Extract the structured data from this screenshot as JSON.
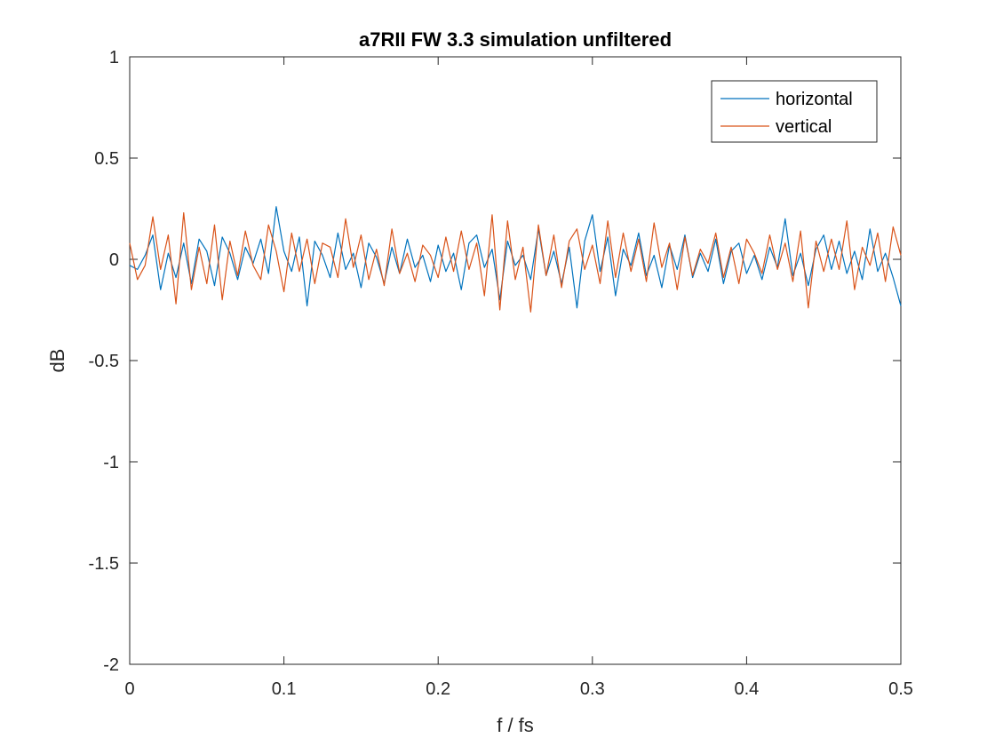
{
  "chart_data": {
    "type": "line",
    "title": "a7RII FW 3.3 simulation unfiltered",
    "xlabel": "f / fs",
    "ylabel": "dB",
    "xlim": [
      0,
      0.5
    ],
    "ylim": [
      -2,
      1
    ],
    "xticks": [
      0,
      0.1,
      0.2,
      0.3,
      0.4,
      0.5
    ],
    "xtick_labels": [
      "0",
      "0.1",
      "0.2",
      "0.3",
      "0.4",
      "0.5"
    ],
    "yticks": [
      -2,
      -1.5,
      -1,
      -0.5,
      0,
      0.5,
      1
    ],
    "ytick_labels": [
      "-2",
      "-1.5",
      "-1",
      "-0.5",
      "0",
      "0.5",
      "1"
    ],
    "grid": false,
    "legend_position": "top-right",
    "x": [
      0,
      0.005,
      0.01,
      0.015,
      0.02,
      0.025,
      0.03,
      0.035,
      0.04,
      0.045,
      0.05,
      0.055,
      0.06,
      0.065,
      0.07,
      0.075,
      0.08,
      0.085,
      0.09,
      0.095,
      0.1,
      0.105,
      0.11,
      0.115,
      0.12,
      0.125,
      0.13,
      0.135,
      0.14,
      0.145,
      0.15,
      0.155,
      0.16,
      0.165,
      0.17,
      0.175,
      0.18,
      0.185,
      0.19,
      0.195,
      0.2,
      0.205,
      0.21,
      0.215,
      0.22,
      0.225,
      0.23,
      0.235,
      0.24,
      0.245,
      0.25,
      0.255,
      0.26,
      0.265,
      0.27,
      0.275,
      0.28,
      0.285,
      0.29,
      0.295,
      0.3,
      0.305,
      0.31,
      0.315,
      0.32,
      0.325,
      0.33,
      0.335,
      0.34,
      0.345,
      0.35,
      0.355,
      0.36,
      0.365,
      0.37,
      0.375,
      0.38,
      0.385,
      0.39,
      0.395,
      0.4,
      0.405,
      0.41,
      0.415,
      0.42,
      0.425,
      0.43,
      0.435,
      0.44,
      0.445,
      0.45,
      0.455,
      0.46,
      0.465,
      0.47,
      0.475,
      0.48,
      0.485,
      0.49,
      0.495,
      0.5
    ],
    "series": [
      {
        "name": "horizontal",
        "color": "#0072BD",
        "values": [
          -0.03,
          -0.05,
          0.02,
          0.12,
          -0.15,
          0.03,
          -0.09,
          0.08,
          -0.12,
          0.1,
          0.04,
          -0.13,
          0.11,
          0.03,
          -0.1,
          0.06,
          -0.02,
          0.1,
          -0.07,
          0.26,
          0.04,
          -0.06,
          0.11,
          -0.23,
          0.09,
          0.02,
          -0.09,
          0.13,
          -0.05,
          0.03,
          -0.14,
          0.08,
          0.01,
          -0.12,
          0.06,
          -0.07,
          0.1,
          -0.04,
          0.02,
          -0.11,
          0.07,
          -0.06,
          0.03,
          -0.15,
          0.08,
          0.12,
          -0.04,
          0.05,
          -0.2,
          0.09,
          -0.03,
          0.02,
          -0.1,
          0.15,
          -0.08,
          0.04,
          -0.12,
          0.06,
          -0.24,
          0.09,
          0.22,
          -0.06,
          0.11,
          -0.18,
          0.05,
          -0.03,
          0.13,
          -0.08,
          0.02,
          -0.14,
          0.07,
          -0.05,
          0.12,
          -0.09,
          0.03,
          -0.06,
          0.1,
          -0.12,
          0.04,
          0.08,
          -0.07,
          0.02,
          -0.1,
          0.06,
          -0.04,
          0.2,
          -0.08,
          0.03,
          -0.13,
          0.05,
          0.12,
          -0.05,
          0.09,
          -0.07,
          0.04,
          -0.1,
          0.15,
          -0.06,
          0.03,
          -0.09,
          -0.23
        ]
      },
      {
        "name": "vertical",
        "color": "#D95319",
        "values": [
          0.08,
          -0.1,
          -0.03,
          0.21,
          -0.05,
          0.12,
          -0.22,
          0.23,
          -0.15,
          0.06,
          -0.12,
          0.17,
          -0.2,
          0.09,
          -0.08,
          0.14,
          -0.03,
          -0.1,
          0.17,
          0.04,
          -0.16,
          0.13,
          -0.06,
          0.1,
          -0.12,
          0.08,
          0.06,
          -0.09,
          0.2,
          -0.04,
          0.12,
          -0.1,
          0.05,
          -0.13,
          0.15,
          -0.07,
          0.03,
          -0.11,
          0.07,
          0.02,
          -0.09,
          0.11,
          -0.06,
          0.14,
          -0.05,
          0.08,
          -0.18,
          0.22,
          -0.25,
          0.19,
          -0.1,
          0.06,
          -0.26,
          0.17,
          -0.08,
          0.12,
          -0.14,
          0.09,
          0.15,
          -0.05,
          0.07,
          -0.12,
          0.19,
          -0.09,
          0.13,
          -0.06,
          0.1,
          -0.11,
          0.18,
          -0.04,
          0.08,
          -0.15,
          0.11,
          -0.08,
          0.05,
          -0.02,
          0.13,
          -0.09,
          0.06,
          -0.12,
          0.1,
          0.03,
          -0.07,
          0.12,
          -0.05,
          0.08,
          -0.11,
          0.14,
          -0.24,
          0.09,
          -0.06,
          0.1,
          -0.05,
          0.19,
          -0.15,
          0.06,
          -0.03,
          0.13,
          -0.11,
          0.16,
          0.02
        ]
      }
    ]
  }
}
